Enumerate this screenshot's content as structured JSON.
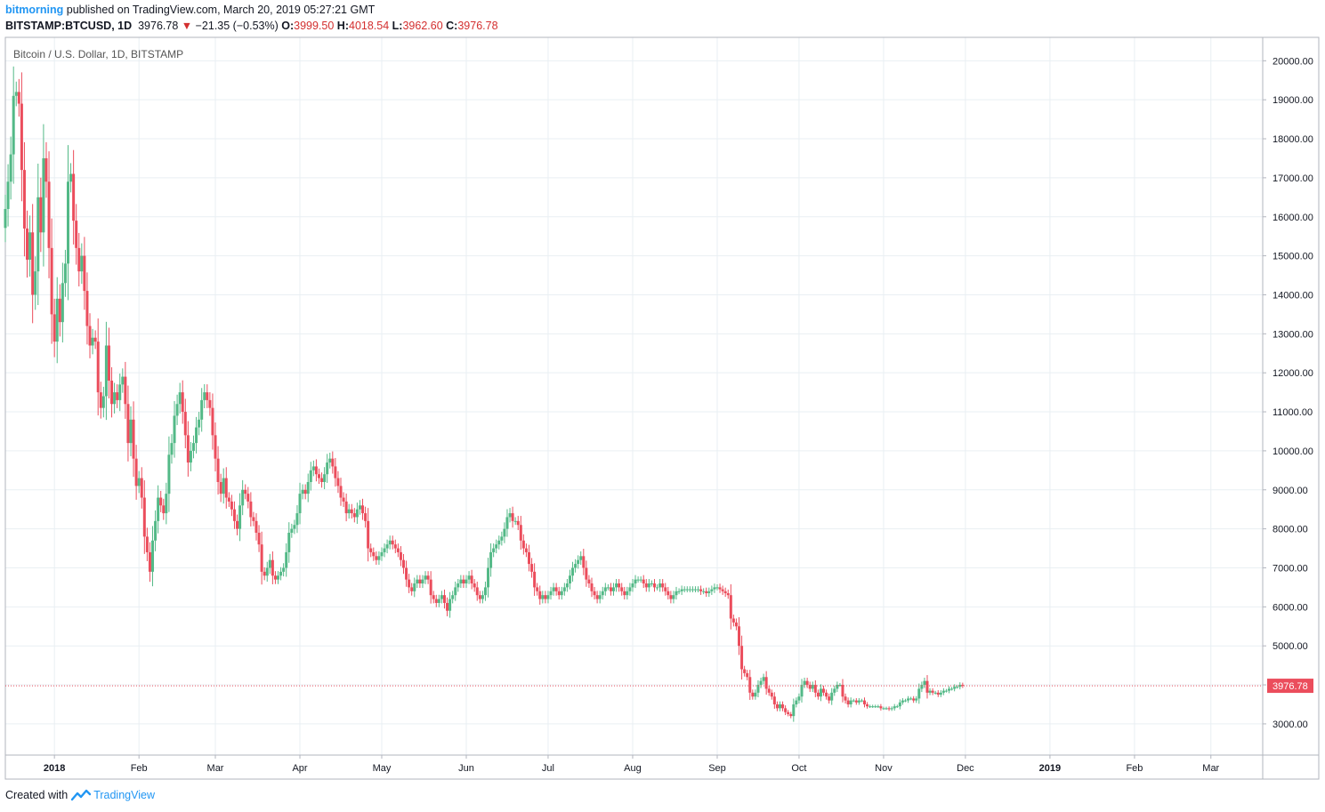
{
  "header": {
    "publisher": "bitmorning",
    "published_text": "published on TradingView.com, March 20, 2019 05:27:21 GMT",
    "symbol": "BITSTAMP:BTCUSD, 1D",
    "last": "3976.78",
    "change_arrow": "▼",
    "change": "−21.35 (−0.53%)",
    "o_label": "O:",
    "o": "3999.50",
    "h_label": "H:",
    "h": "4018.54",
    "l_label": "L:",
    "l": "3962.60",
    "c_label": "C:",
    "c": "3976.78"
  },
  "footer": {
    "created_with": "Created with",
    "brand": "TradingView"
  },
  "colors": {
    "up": "#53b987",
    "down": "#eb4d5c",
    "grid": "#e9eff3",
    "price_line": "#eb4d5c",
    "publisher": "#2196f3"
  },
  "chart_data": {
    "type": "candlestick",
    "title": "Bitcoin / U.S. Dollar, 1D, BITSTAMP",
    "last_price_label": "3976.78",
    "last_price": 3976.78,
    "ylim": [
      2200,
      20600
    ],
    "y_ticks": [
      "3000.00",
      "4000.00",
      "5000.00",
      "6000.00",
      "7000.00",
      "8000.00",
      "9000.00",
      "10000.00",
      "11000.00",
      "12000.00",
      "13000.00",
      "14000.00",
      "15000.00",
      "16000.00",
      "17000.00",
      "18000.00",
      "19000.00",
      "20000.00"
    ],
    "x_ticks": [
      {
        "label": "2018",
        "day": 0,
        "bold": true
      },
      {
        "label": "Feb",
        "day": 31
      },
      {
        "label": "Mar",
        "day": 59
      },
      {
        "label": "Apr",
        "day": 90
      },
      {
        "label": "May",
        "day": 120
      },
      {
        "label": "Jun",
        "day": 151
      },
      {
        "label": "Jul",
        "day": 181
      },
      {
        "label": "Aug",
        "day": 212
      },
      {
        "label": "Sep",
        "day": 243
      },
      {
        "label": "Oct",
        "day": 273
      },
      {
        "label": "Nov",
        "day": 304
      },
      {
        "label": "Dec",
        "day": 334
      },
      {
        "label": "2019",
        "day": 365,
        "bold": true
      },
      {
        "label": "Feb",
        "day": 396
      },
      {
        "label": "Mar",
        "day": 424
      }
    ],
    "x_range_days": [
      -18,
      443
    ],
    "start_day": -18,
    "closes": [
      16200,
      16900,
      17600,
      19100,
      19200,
      18900,
      17200,
      15700,
      14900,
      15600,
      14000,
      14600,
      16500,
      15600,
      17500,
      16900,
      15200,
      13500,
      12800,
      13900,
      13300,
      14300,
      14800,
      16900,
      17100,
      15900,
      15200,
      14600,
      15000,
      14100,
      13200,
      12700,
      12900,
      12800,
      11500,
      11100,
      11400,
      12700,
      11800,
      11200,
      11500,
      11300,
      11700,
      11900,
      11200,
      10200,
      10800,
      9800,
      9100,
      9300,
      8800,
      7800,
      7400,
      6900,
      7700,
      8200,
      8800,
      8600,
      8400,
      8900,
      9900,
      10200,
      10900,
      11200,
      11500,
      11000,
      10400,
      9700,
      10000,
      10200,
      10600,
      10800,
      11300,
      11500,
      11300,
      11100,
      10400,
      9800,
      9200,
      8900,
      9300,
      8800,
      8700,
      8500,
      8200,
      8000,
      8600,
      9000,
      8900,
      8700,
      8300,
      8200,
      7900,
      7600,
      6900,
      6800,
      7000,
      7200,
      6800,
      6700,
      6800,
      6900,
      7000,
      7400,
      7900,
      8000,
      8100,
      8400,
      8900,
      9000,
      8900,
      9200,
      9500,
      9600,
      9400,
      9300,
      9200,
      9400,
      9700,
      9800,
      9600,
      9300,
      9100,
      8800,
      8700,
      8400,
      8500,
      8400,
      8300,
      8500,
      8600,
      8400,
      8200,
      7500,
      7400,
      7300,
      7200,
      7300,
      7400,
      7500,
      7600,
      7700,
      7600,
      7500,
      7400,
      7200,
      7000,
      6700,
      6500,
      6400,
      6600,
      6700,
      6600,
      6700,
      6800,
      6700,
      6300,
      6200,
      6100,
      6200,
      6300,
      6100,
      5900,
      6200,
      6300,
      6500,
      6600,
      6700,
      6600,
      6700,
      6800,
      6600,
      6500,
      6300,
      6200,
      6300,
      6500,
      7000,
      7400,
      7500,
      7600,
      7700,
      7800,
      8000,
      8300,
      8400,
      8200,
      8200,
      8100,
      7700,
      7500,
      7400,
      7100,
      6900,
      6500,
      6400,
      6200,
      6300,
      6200,
      6300,
      6400,
      6500,
      6400,
      6300,
      6400,
      6500,
      6600,
      6800,
      7000,
      7100,
      7200,
      7300,
      7000,
      6700,
      6600,
      6400,
      6300,
      6200,
      6300,
      6400,
      6500,
      6500,
      6400,
      6500,
      6600,
      6500,
      6400,
      6300,
      6400,
      6500,
      6600,
      6700,
      6700,
      6700,
      6600,
      6500,
      6600,
      6600,
      6500,
      6500,
      6600,
      6500,
      6400,
      6300,
      6200,
      6300,
      6400,
      6400,
      6450,
      6450,
      6450,
      6450,
      6450,
      6450,
      6450,
      6400,
      6400,
      6350,
      6400,
      6450,
      6500,
      6500,
      6450,
      6400,
      6350,
      6300,
      5700,
      5600,
      5500,
      5000,
      4400,
      4300,
      4200,
      3800,
      3700,
      3800,
      4000,
      4100,
      4200,
      3900,
      3800,
      3700,
      3500,
      3400,
      3500,
      3400,
      3300,
      3250,
      3200,
      3500,
      3600,
      3700,
      4000,
      4100,
      4000,
      3900,
      4000,
      3800,
      3700,
      3900,
      3800,
      3700,
      3600,
      3800,
      3900,
      4000,
      4000,
      3700,
      3600,
      3500,
      3600,
      3600,
      3550,
      3600,
      3600,
      3500,
      3450,
      3450,
      3450,
      3450,
      3450,
      3400,
      3400,
      3400,
      3380,
      3400,
      3450,
      3450,
      3550,
      3600,
      3600,
      3650,
      3650,
      3600,
      3650,
      3900,
      4000,
      4100,
      3800,
      3850,
      3800,
      3800,
      3750,
      3800,
      3850,
      3850,
      3900,
      3900,
      3950,
      3950,
      4000,
      3976.78
    ]
  }
}
